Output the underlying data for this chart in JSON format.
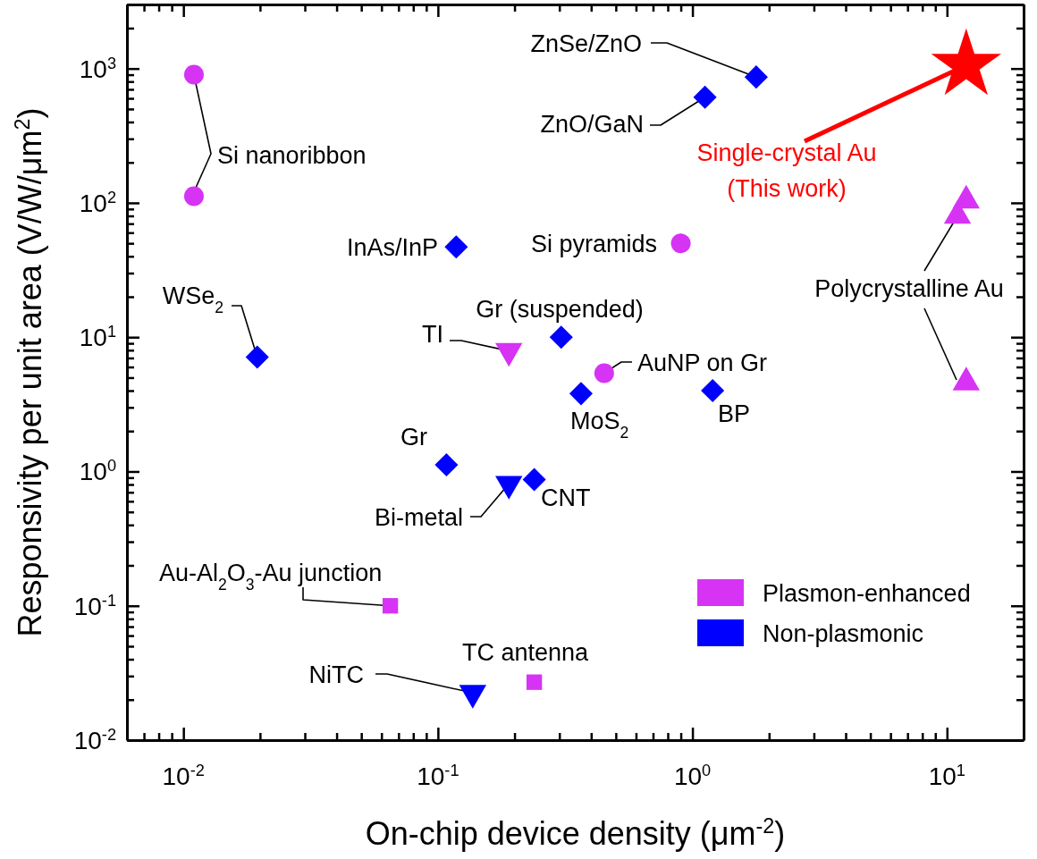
{
  "chart_data": {
    "type": "scatter",
    "xlabel": "On-chip device density (μm$^{-2}$)",
    "ylabel": "Responsivity per unit area (V/W/μm$^{2}$)",
    "log": "xy",
    "xlim": [
      0.006,
      20
    ],
    "ylim": [
      0.01,
      3000
    ],
    "xticks": [
      {
        "value": 0.006,
        "label": null
      },
      {
        "value": 0.007,
        "label": null
      },
      {
        "value": 0.008,
        "label": null
      },
      {
        "value": 0.009,
        "label": null
      },
      {
        "value": 0.01,
        "label": "10$^{-2}$"
      },
      {
        "value": 0.02,
        "label": null
      },
      {
        "value": 0.03,
        "label": null
      },
      {
        "value": 0.04,
        "label": null
      },
      {
        "value": 0.05,
        "label": null
      },
      {
        "value": 0.06,
        "label": null
      },
      {
        "value": 0.07,
        "label": null
      },
      {
        "value": 0.08,
        "label": null
      },
      {
        "value": 0.09,
        "label": null
      },
      {
        "value": 0.1,
        "label": "10$^{-1}$"
      },
      {
        "value": 0.2,
        "label": null
      },
      {
        "value": 0.3,
        "label": null
      },
      {
        "value": 0.4,
        "label": null
      },
      {
        "value": 0.5,
        "label": null
      },
      {
        "value": 0.6,
        "label": null
      },
      {
        "value": 0.7,
        "label": null
      },
      {
        "value": 0.8,
        "label": null
      },
      {
        "value": 0.9,
        "label": null
      },
      {
        "value": 1,
        "label": "10$^{0}$"
      },
      {
        "value": 2,
        "label": null
      },
      {
        "value": 3,
        "label": null
      },
      {
        "value": 4,
        "label": null
      },
      {
        "value": 5,
        "label": null
      },
      {
        "value": 6,
        "label": null
      },
      {
        "value": 7,
        "label": null
      },
      {
        "value": 8,
        "label": null
      },
      {
        "value": 9,
        "label": null
      },
      {
        "value": 10,
        "label": "10$^{1}$"
      },
      {
        "value": 20,
        "label": null
      }
    ],
    "yticks": [
      {
        "value": 0.01,
        "label": "10$^{-2}$"
      },
      {
        "value": 0.02,
        "label": null
      },
      {
        "value": 0.03,
        "label": null
      },
      {
        "value": 0.04,
        "label": null
      },
      {
        "value": 0.05,
        "label": null
      },
      {
        "value": 0.06,
        "label": null
      },
      {
        "value": 0.07,
        "label": null
      },
      {
        "value": 0.08,
        "label": null
      },
      {
        "value": 0.09,
        "label": null
      },
      {
        "value": 0.1,
        "label": "10$^{-1}$"
      },
      {
        "value": 0.2,
        "label": null
      },
      {
        "value": 0.3,
        "label": null
      },
      {
        "value": 0.4,
        "label": null
      },
      {
        "value": 0.5,
        "label": null
      },
      {
        "value": 0.6,
        "label": null
      },
      {
        "value": 0.7,
        "label": null
      },
      {
        "value": 0.8,
        "label": null
      },
      {
        "value": 0.9,
        "label": null
      },
      {
        "value": 1,
        "label": "10$^{0}$"
      },
      {
        "value": 2,
        "label": null
      },
      {
        "value": 3,
        "label": null
      },
      {
        "value": 4,
        "label": null
      },
      {
        "value": 5,
        "label": null
      },
      {
        "value": 6,
        "label": null
      },
      {
        "value": 7,
        "label": null
      },
      {
        "value": 8,
        "label": null
      },
      {
        "value": 9,
        "label": null
      },
      {
        "value": 10,
        "label": "10$^{1}$"
      },
      {
        "value": 20,
        "label": null
      },
      {
        "value": 30,
        "label": null
      },
      {
        "value": 40,
        "label": null
      },
      {
        "value": 50,
        "label": null
      },
      {
        "value": 60,
        "label": null
      },
      {
        "value": 70,
        "label": null
      },
      {
        "value": 80,
        "label": null
      },
      {
        "value": 90,
        "label": null
      },
      {
        "value": 100,
        "label": "10$^{2}$"
      },
      {
        "value": 200,
        "label": null
      },
      {
        "value": 300,
        "label": null
      },
      {
        "value": 400,
        "label": null
      },
      {
        "value": 500,
        "label": null
      },
      {
        "value": 600,
        "label": null
      },
      {
        "value": 700,
        "label": null
      },
      {
        "value": 800,
        "label": null
      },
      {
        "value": 900,
        "label": null
      },
      {
        "value": 1000,
        "label": "10$^{3}$"
      },
      {
        "value": 2000,
        "label": null
      },
      {
        "value": 3000,
        "label": null
      }
    ],
    "legend": "bottom right",
    "series": [
      {
        "name": "Plasmon-enhanced",
        "color": "#d633f5",
        "marker": "circle",
        "x": [
          0.011,
          0.011,
          0.9,
          0.45
        ],
        "values": [
          900,
          112,
          50,
          5.4
        ]
      },
      {
        "name": "Non-plasmonic",
        "color": "#0000ff",
        "marker": "diamond",
        "x": [
          0.0195,
          0.118,
          0.305,
          1.78,
          1.12,
          0.365,
          1.2,
          0.108,
          0.239
        ],
        "values": [
          7.1,
          47,
          10,
          865,
          612,
          3.8,
          4,
          1.12,
          0.87
        ]
      },
      {
        "color": "#d633f5",
        "marker": "triangle-down",
        "x": [
          0.19
        ],
        "values": [
          7.9
        ]
      },
      {
        "color": "#0000ff",
        "marker": "triangle-down",
        "x": [
          0.19,
          0.137
        ],
        "values": [
          0.81,
          0.0225
        ]
      },
      {
        "color": "#d633f5",
        "marker": "square",
        "x": [
          0.065,
          0.239
        ],
        "values": [
          0.1,
          0.027
        ]
      },
      {
        "color": "#d633f5",
        "marker": "triangle",
        "x": [
          11.9,
          11,
          11.9
        ],
        "values": [
          104,
          80,
          4.6
        ]
      },
      {
        "color": "#ff0000",
        "marker": "star",
        "x": [
          11.9
        ],
        "values": [
          1060
        ]
      }
    ],
    "annotations": [
      {
        "text": "Si nanoribbon",
        "x": 0.011,
        "y": 900
      },
      {
        "text": "ZnSe/ZnO",
        "x": 1.78,
        "y": 865
      },
      {
        "text": "ZnO/GaN",
        "x": 1.12,
        "y": 612
      },
      {
        "text": "Single-crystal Au\n(This work)",
        "x": 11.9,
        "y": 1060
      },
      {
        "text": "InAs/InP",
        "x": 0.118,
        "y": 47
      },
      {
        "text": "Si pyramids",
        "x": 0.9,
        "y": 50
      },
      {
        "text": "WSe$_{2}$",
        "x": 0.0195,
        "y": 7.1
      },
      {
        "text": "TI",
        "x": 0.19,
        "y": 7.9
      },
      {
        "text": "Gr (suspended)",
        "x": 0.305,
        "y": 10
      },
      {
        "text": "AuNP on Gr",
        "x": 0.45,
        "y": 5.4
      },
      {
        "text": "MoS$_{2}$",
        "x": 0.365,
        "y": 3.8
      },
      {
        "text": "BP",
        "x": 1.2,
        "y": 4
      },
      {
        "text": "Polycrystalline Au",
        "x": 11,
        "y": 80
      },
      {
        "text": "Gr",
        "x": 0.108,
        "y": 1.12
      },
      {
        "text": "CNT",
        "x": 0.239,
        "y": 0.87
      },
      {
        "text": "Bi-metal",
        "x": 0.19,
        "y": 0.81
      },
      {
        "text": "Au-Al$_{2}$O$_{3}$-Au junction",
        "x": 0.065,
        "y": 0.1
      },
      {
        "text": "NiTC",
        "x": 0.137,
        "y": 0.0225
      },
      {
        "text": "TC antenna",
        "x": 0.239,
        "y": 0.027
      }
    ]
  }
}
